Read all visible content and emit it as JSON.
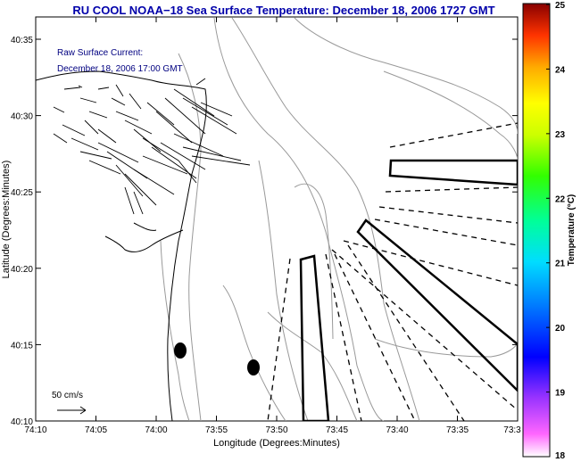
{
  "title": "RU COOL  NOAA−18  Sea Surface Temperature:  December 18, 2006 1727 GMT",
  "current_label": {
    "line1": "Raw Surface Current:",
    "line2": "December 18, 2006 17:00 GMT"
  },
  "scale_label": "50 cm/s",
  "xlabel": "Longitude (Degrees:Minutes)",
  "ylabel": "Latitude (Degrees:Minutes)",
  "x_ticks": [
    "74:10",
    "74:05",
    "74:00",
    "73:55",
    "73:50",
    "73:45",
    "73:40",
    "73:35",
    "73:3"
  ],
  "y_ticks": [
    "40:35",
    "40:30",
    "40:25",
    "40:20",
    "40:15",
    "40:10"
  ],
  "colorbar": {
    "label": "Temperature (°C)",
    "min": 18,
    "max": 25,
    "ticks": [
      "25",
      "24",
      "23",
      "22",
      "21",
      "20",
      "19",
      "18"
    ]
  },
  "colors": {
    "title": "#0000aa",
    "current_label": "#000080",
    "land_contour": "#000000",
    "bathymetry": "#999999",
    "overlay": "#000000"
  }
}
